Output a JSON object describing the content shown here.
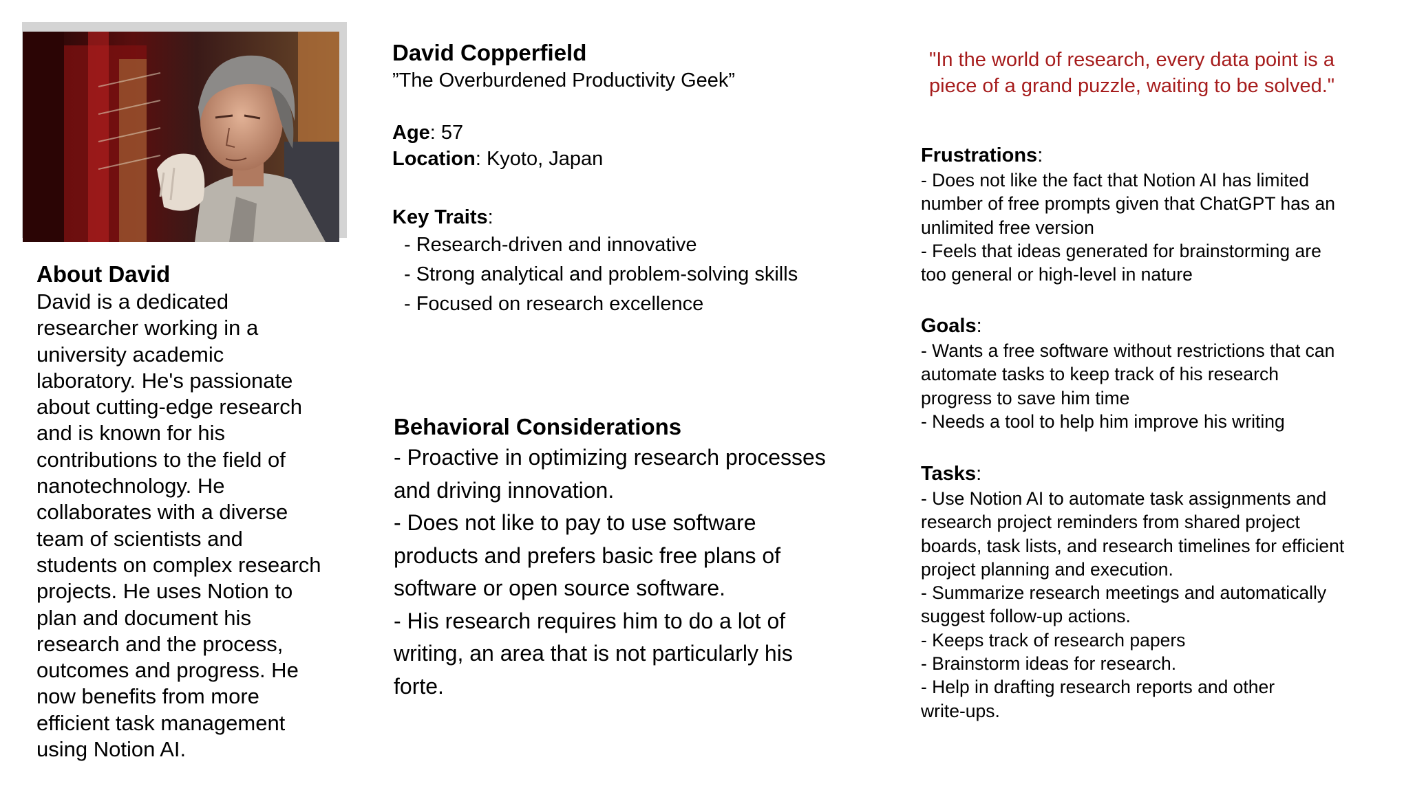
{
  "photo": {
    "description_icon": "researcher-photo"
  },
  "about": {
    "heading": "About David",
    "lines": [
      "David is a dedicated",
      "researcher working in a",
      "university academic",
      "laboratory. He's passionate",
      "about cutting-edge research",
      "and is known for his",
      "contributions to the field of",
      "nanotechnology. He",
      "collaborates with a diverse",
      "team of scientists and",
      "students on complex research",
      "projects. He uses Notion to",
      "plan and document his",
      "research and the process,",
      "outcomes and progress. He",
      "now benefits from more",
      "efficient task management",
      "using Notion AI."
    ]
  },
  "persona": {
    "name": "David Copperfield",
    "tagline": "”The Overburdened Productivity Geek”",
    "age_label": "Age",
    "age_value": ": 57",
    "location_label": "Location",
    "location_value": ": Kyoto, Japan",
    "traits_label": "Key Traits",
    "traits_colon": ":",
    "traits": [
      "- Research-driven and innovative",
      "- Strong analytical and problem-solving skills",
      "- Focused on research excellence"
    ]
  },
  "behavioral": {
    "heading": "Behavioral Considerations",
    "lines": [
      "- Proactive in optimizing research processes",
      "and driving innovation.",
      "- Does not like to pay to use software",
      "products and prefers basic free plans of",
      "software or open source software.",
      "- His research requires him to do a lot of",
      "writing, an area that is not particularly his",
      "forte."
    ]
  },
  "quote": {
    "lines": [
      "\"In the world of research, every data point is a",
      "piece of a grand puzzle, waiting to be solved.\""
    ],
    "color": "#a61c1c"
  },
  "frustrations": {
    "heading": "Frustrations",
    "colon": ":",
    "lines": [
      "- Does not like the fact that Notion AI has limited",
      "number of free prompts given that ChatGPT has an",
      "unlimited free version",
      "- Feels that ideas generated for brainstorming are",
      "too general or high-level in nature"
    ]
  },
  "goals": {
    "heading": "Goals",
    "colon": ":",
    "lines": [
      "- Wants a free software without restrictions that can",
      "automate tasks to keep track of his research",
      "progress to save him time",
      "- Needs a tool to help him improve his writing"
    ]
  },
  "tasks": {
    "heading": "Tasks",
    "colon": ":",
    "lines": [
      "- Use Notion AI to  automate task assignments and",
      "research project reminders from shared project",
      "boards, task lists, and research timelines for efficient",
      "project planning and execution.",
      "- Summarize research meetings and automatically",
      "suggest follow-up actions.",
      "- Keeps track of research papers",
      "- Brainstorm ideas for research.",
      "- Help in drafting research reports and other",
      "write-ups."
    ]
  }
}
